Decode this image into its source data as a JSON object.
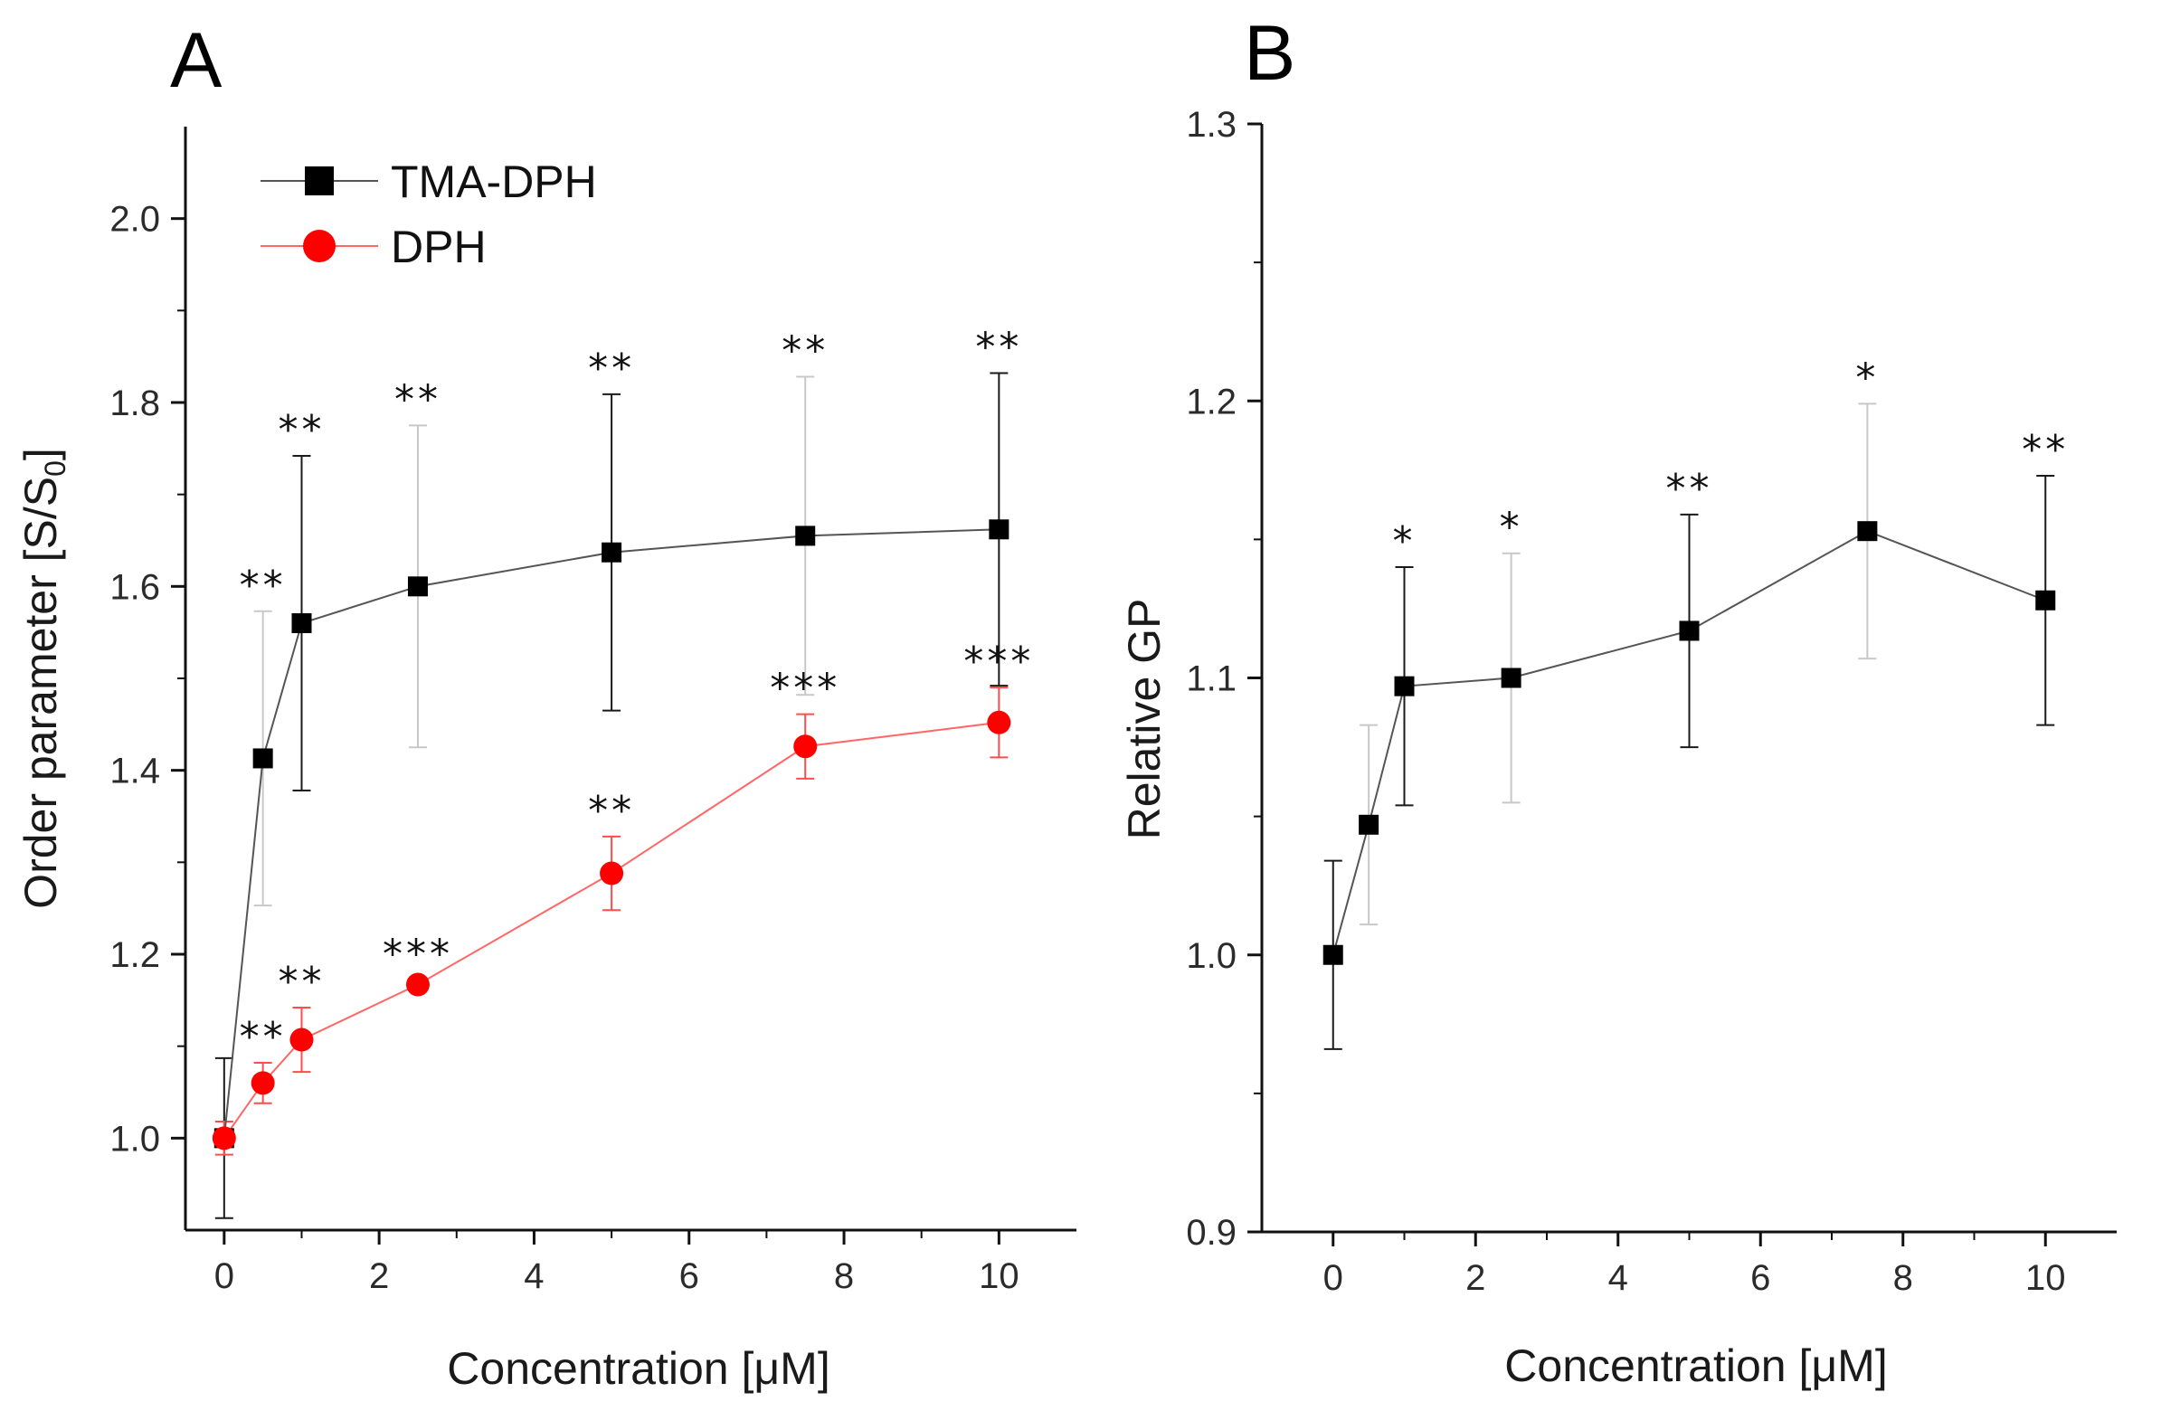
{
  "chart_data": [
    {
      "type": "line",
      "panel_label": "A",
      "xlabel": "Concentration [μM]",
      "ylabel": "Order parameter [S/S",
      "ylabel_sub": "0",
      "ylabel_end": "]",
      "xlim": [
        -0.5,
        11
      ],
      "ylim": [
        0.9,
        2.1
      ],
      "xticks": [
        0,
        2,
        4,
        6,
        8,
        10
      ],
      "xtick_labels": [
        "0",
        "2",
        "4",
        "6",
        "8",
        "10"
      ],
      "yticks": [
        1.0,
        1.2,
        1.4,
        1.6,
        1.8,
        2.0
      ],
      "ytick_labels": [
        "1.0",
        "1.2",
        "1.4",
        "1.6",
        "1.8",
        "2.0"
      ],
      "grid": false,
      "legend_position": "top-left",
      "x": [
        0,
        0.5,
        1,
        2.5,
        5,
        7.5,
        10
      ],
      "series": [
        {
          "name": "TMA-DPH",
          "marker": "square",
          "color": "#000000",
          "line_color": "#555555",
          "values": [
            1.0,
            1.413,
            1.56,
            1.6,
            1.637,
            1.655,
            1.662
          ],
          "errors": [
            0.087,
            0.16,
            0.182,
            0.175,
            0.172,
            0.173,
            0.17
          ],
          "annotations": [
            "",
            "**",
            "**",
            "**",
            "**",
            "**",
            "**"
          ]
        },
        {
          "name": "DPH",
          "marker": "circle",
          "color": "#ff0000",
          "line_color": "#ff6666",
          "values": [
            1.0,
            1.06,
            1.107,
            1.167,
            1.288,
            1.426,
            1.452
          ],
          "errors": [
            0.018,
            0.022,
            0.035,
            0.005,
            0.04,
            0.035,
            0.038
          ],
          "annotations": [
            "",
            "**",
            "**",
            "***",
            "**",
            "***",
            "***"
          ]
        }
      ]
    },
    {
      "type": "line",
      "panel_label": "B",
      "xlabel": "Concentration [μM]",
      "ylabel": "Relative GP",
      "xlim": [
        -1,
        11
      ],
      "ylim": [
        0.9,
        1.3
      ],
      "xticks": [
        0,
        2,
        4,
        6,
        8,
        10
      ],
      "xtick_labels": [
        "0",
        "2",
        "4",
        "6",
        "8",
        "10"
      ],
      "yticks": [
        0.9,
        1.0,
        1.1,
        1.2,
        1.3
      ],
      "ytick_labels": [
        "0.9",
        "1.0",
        "1.1",
        "1.2",
        "1.3"
      ],
      "grid": false,
      "x": [
        0,
        0.5,
        1,
        2.5,
        5,
        7.5,
        10
      ],
      "series": [
        {
          "name": "Relative GP",
          "marker": "square",
          "color": "#000000",
          "line_color": "#555555",
          "values": [
            1.0,
            1.047,
            1.097,
            1.1,
            1.117,
            1.153,
            1.128
          ],
          "errors": [
            0.034,
            0.036,
            0.043,
            0.045,
            0.042,
            0.046,
            0.045
          ],
          "annotations": [
            "",
            "",
            "*",
            "*",
            "**",
            "*",
            "**"
          ]
        }
      ]
    }
  ]
}
